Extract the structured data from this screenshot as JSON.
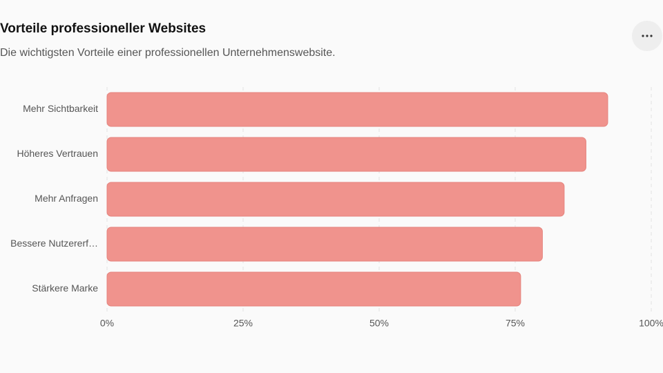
{
  "chart_data": {
    "type": "bar",
    "orientation": "horizontal",
    "title": "Vorteile professioneller Websites",
    "subtitle": "Die wichtigsten Vorteile einer professionellen Unternehmenswebsite.",
    "categories": [
      "Mehr Sichtbarkeit",
      "Höheres Vertrauen",
      "Mehr Anfragen",
      "Bessere Nutzererf…",
      "Stärkere Marke"
    ],
    "values": [
      92,
      88,
      84,
      80,
      76
    ],
    "color": "#f0938d",
    "xlim": [
      0,
      100
    ],
    "xticks": [
      {
        "value": 0,
        "label": "0%"
      },
      {
        "value": 25,
        "label": "25%"
      },
      {
        "value": 50,
        "label": "50%"
      },
      {
        "value": 75,
        "label": "75%"
      },
      {
        "value": 100,
        "label": "100%"
      }
    ],
    "grid": true
  }
}
